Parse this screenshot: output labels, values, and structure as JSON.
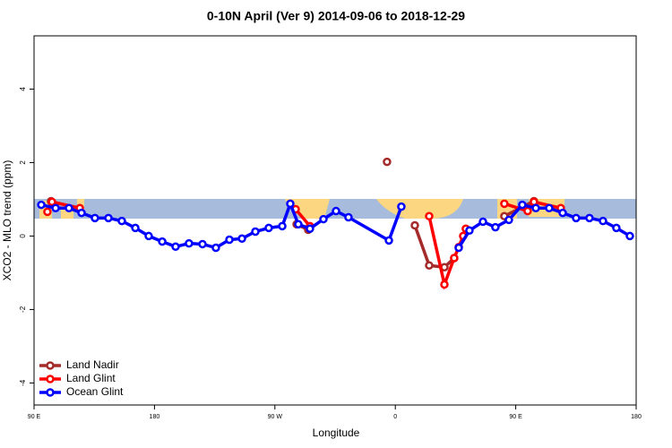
{
  "chart_data": {
    "type": "line",
    "title": "0-10N April (Ver 9)   2014-09-06 to 2018-12-29",
    "x_label": "Longitude",
    "y_label": "XCO2 - MLO trend (ppm)",
    "xlim": [
      90,
      540
    ],
    "ylim": [
      -4.6,
      5.45
    ],
    "xticks": [
      {
        "value": 90,
        "label": "90 E"
      },
      {
        "value": 180,
        "label": "180"
      },
      {
        "value": 270,
        "label": "90 W"
      },
      {
        "value": 360,
        "label": "0"
      },
      {
        "value": 450,
        "label": "90 E"
      },
      {
        "value": 540,
        "label": "180"
      }
    ],
    "yticks": [
      -4,
      -2,
      0,
      2,
      4
    ],
    "legend": "bottom-left",
    "series": [
      {
        "name": "Land Nadir",
        "color": "#a52a2a",
        "x": [
          102.7,
          null,
          286.2,
          294.9,
          null,
          353.8,
          null,
          374.6,
          385.3,
          396.7,
          404.0,
          null,
          441.5,
          463.6
        ],
        "values": [
          0.95,
          null,
          0.32,
          0.17,
          null,
          2.02,
          null,
          0.29,
          -0.8,
          -0.85,
          -0.6,
          null,
          0.54,
          0.95
        ]
      },
      {
        "name": "Land Glint",
        "color": "#ff0000",
        "x": [
          100.0,
          103.4,
          124.2,
          null,
          285.5,
          296.2,
          null,
          385.3,
          396.7,
          404.0,
          407.4,
          410.7,
          412.7,
          null,
          441.5,
          458.9,
          463.6,
          483.7
        ],
        "values": [
          0.66,
          0.93,
          0.76,
          null,
          0.73,
          0.27,
          null,
          0.54,
          -1.32,
          -0.6,
          -0.3,
          0.0,
          0.2,
          null,
          0.88,
          0.68,
          0.93,
          0.76
        ]
      },
      {
        "name": "Ocean Glint",
        "color": "#0000ff",
        "x": [
          95.4,
          106.1,
          116.1,
          125.5,
          135.5,
          145.6,
          155.6,
          165.7,
          175.7,
          185.8,
          195.8,
          205.8,
          215.9,
          225.9,
          236.0,
          245.4,
          255.4,
          265.4,
          275.5,
          281.5,
          287.5,
          296.2,
          306.3,
          315.7,
          325.0,
          355.2,
          364.5,
          null,
          407.4,
          415.4,
          425.5,
          434.8,
          444.9,
          454.9,
          465.0,
          475.0,
          485.1,
          495.1,
          505.1,
          515.2,
          525.2,
          535.3
        ],
        "values": [
          0.85,
          0.76,
          0.76,
          0.63,
          0.49,
          0.49,
          0.41,
          0.22,
          0.0,
          -0.15,
          -0.29,
          -0.2,
          -0.22,
          -0.32,
          -0.1,
          -0.07,
          0.12,
          0.22,
          0.27,
          0.88,
          0.32,
          0.2,
          0.46,
          0.68,
          0.51,
          -0.12,
          0.8,
          null,
          -0.32,
          0.15,
          0.39,
          0.24,
          0.44,
          0.85,
          0.76,
          0.76,
          0.63,
          0.49,
          0.49,
          0.41,
          0.22,
          0.0
        ]
      }
    ]
  }
}
